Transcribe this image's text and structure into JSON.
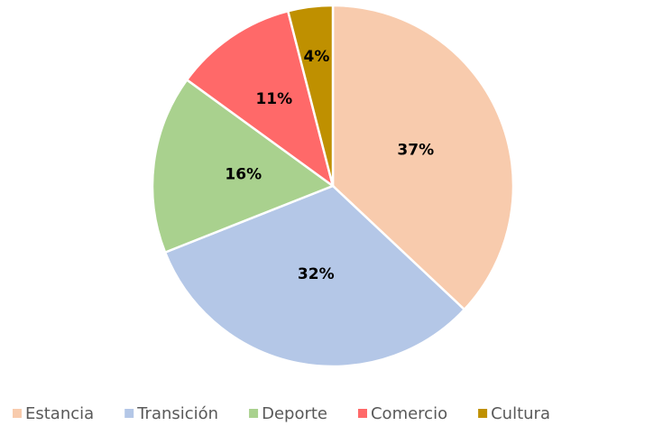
{
  "chart_data": {
    "type": "pie",
    "categories": [
      "Estancia",
      "Transición",
      "Deporte",
      "Comercio",
      "Cultura"
    ],
    "values": [
      37,
      32,
      16,
      11,
      4
    ],
    "value_labels": [
      "37%",
      "32%",
      "16%",
      "11%",
      "4%"
    ],
    "colors": [
      "#F8CBAD",
      "#B4C7E7",
      "#A9D18E",
      "#FF6969",
      "#BF9000"
    ],
    "legend": "bottom"
  }
}
